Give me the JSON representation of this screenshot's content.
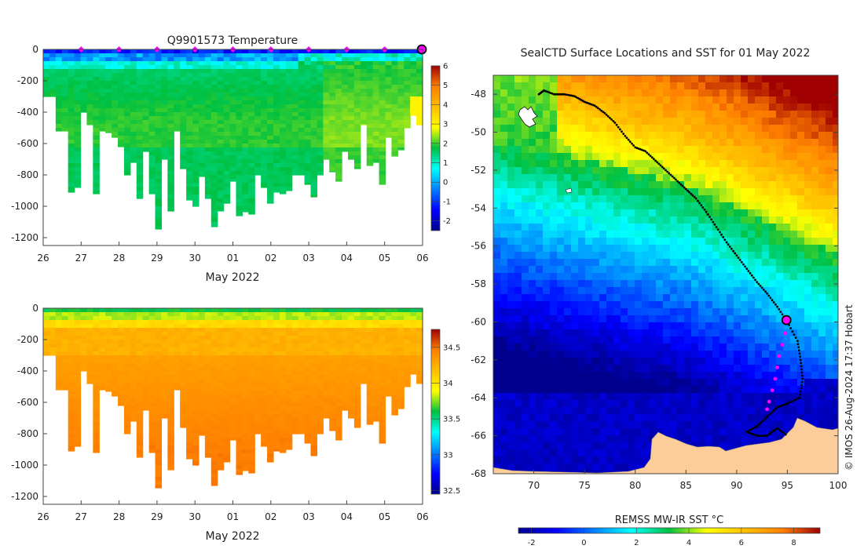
{
  "left_panels": {
    "title": "Q9901573  Temperature",
    "xlabel": "May 2022",
    "xticks": [
      "26",
      "27",
      "28",
      "29",
      "30",
      "01",
      "02",
      "03",
      "04",
      "05",
      "06"
    ],
    "yticks": [
      "0",
      "-200",
      "-400",
      "-600",
      "-800",
      "-1000",
      "-1200"
    ],
    "temp_colorbar": [
      "6",
      "5",
      "4",
      "3",
      "2",
      "1",
      "0",
      "-1",
      "-2"
    ],
    "sal_colorbar": [
      "34.5",
      "34",
      "33.5",
      "33",
      "32.5"
    ]
  },
  "chart_data": [
    {
      "type": "heatmap",
      "title": "Q9901573  Temperature",
      "xlabel": "May 2022",
      "ylabel": "",
      "variable": "temperature",
      "xlim": [
        26,
        36
      ],
      "ylim": [
        -1250,
        0
      ],
      "clim": [
        -2.5,
        6
      ],
      "colorbar_ticks": [
        -2,
        -1,
        0,
        1,
        2,
        3,
        4,
        5,
        6
      ],
      "profile_max_depth": [
        300,
        300,
        520,
        520,
        910,
        880,
        400,
        480,
        920,
        520,
        530,
        560,
        620,
        800,
        720,
        950,
        650,
        920,
        1145,
        700,
        1030,
        520,
        760,
        960,
        1000,
        810,
        950,
        1130,
        1030,
        980,
        840,
        1060,
        1035,
        1050,
        800,
        880,
        980,
        910,
        920,
        900,
        800,
        800,
        860,
        940,
        800,
        700,
        780,
        840,
        650,
        700,
        760,
        480,
        740,
        720,
        860,
        560,
        680,
        640,
        500,
        420,
        480
      ],
      "surface_markers_x": [
        27,
        28,
        29,
        30,
        31,
        32,
        33,
        34,
        35
      ],
      "current_position_x": 36,
      "grid": false
    },
    {
      "type": "heatmap",
      "title": "",
      "xlabel": "May 2022",
      "ylabel": "",
      "variable": "salinity",
      "xlim": [
        26,
        36
      ],
      "ylim": [
        -1250,
        0
      ],
      "clim": [
        32.45,
        34.75
      ],
      "colorbar_ticks": [
        32.5,
        33,
        33.5,
        34,
        34.5
      ],
      "grid": false
    },
    {
      "type": "heatmap",
      "title": "SealCTD Surface Locations and SST for 01 May 2022",
      "xlabel": "",
      "ylabel": "",
      "variable": "sea surface temperature",
      "xlim": [
        66,
        100
      ],
      "ylim": [
        -68,
        -47
      ],
      "xticks": [
        "70",
        "75",
        "80",
        "85",
        "90",
        "95",
        "100"
      ],
      "yticks": [
        "-48",
        "-50",
        "-52",
        "-54",
        "-56",
        "-58",
        "-60",
        "-62",
        "-64",
        "-66",
        "-68"
      ],
      "colorbar_label": "REMSS MW-IR SST °C",
      "colorbar_ticks": [
        "-2",
        "0",
        "2",
        "4",
        "6",
        "8"
      ],
      "clim": [
        -2.5,
        9
      ],
      "track": [
        [
          70.5,
          -48
        ],
        [
          71,
          -47.8
        ],
        [
          72,
          -48
        ],
        [
          73,
          -48
        ],
        [
          74,
          -48.1
        ],
        [
          75,
          -48.4
        ],
        [
          76,
          -48.6
        ],
        [
          77,
          -49
        ],
        [
          78,
          -49.5
        ],
        [
          79,
          -50.2
        ],
        [
          80,
          -50.8
        ],
        [
          81,
          -51
        ],
        [
          82,
          -51.5
        ],
        [
          83,
          -52
        ],
        [
          84,
          -52.5
        ],
        [
          85,
          -53
        ],
        [
          86,
          -53.5
        ],
        [
          87,
          -54.2
        ],
        [
          88,
          -55
        ],
        [
          89,
          -55.8
        ],
        [
          90,
          -56.5
        ],
        [
          91,
          -57.2
        ],
        [
          92,
          -57.9
        ],
        [
          93,
          -58.5
        ],
        [
          94,
          -59.2
        ],
        [
          95,
          -60
        ],
        [
          96,
          -61
        ],
        [
          96.3,
          -62
        ],
        [
          96.5,
          -63
        ],
        [
          96.2,
          -64
        ],
        [
          95,
          -64.3
        ],
        [
          94,
          -64.5
        ],
        [
          93,
          -65
        ],
        [
          92,
          -65.5
        ],
        [
          91,
          -65.8
        ],
        [
          92,
          -66
        ],
        [
          93,
          -66
        ],
        [
          94,
          -65.6
        ],
        [
          95,
          -66
        ]
      ],
      "magenta_points": [
        [
          95,
          -60
        ],
        [
          94.8,
          -60.6
        ],
        [
          94.5,
          -61.2
        ],
        [
          94.2,
          -61.8
        ],
        [
          94,
          -62.4
        ],
        [
          93.8,
          -63
        ],
        [
          93.5,
          -63.6
        ],
        [
          93.2,
          -64.2
        ],
        [
          93,
          -64.6
        ]
      ],
      "current_position": [
        94.9,
        -59.9
      ],
      "land": "Antarctic coastline along southern edge; Kerguelen Islands near 69E,49.5S",
      "grid": false
    }
  ],
  "sst_map": {
    "title": "SealCTD Surface Locations and SST for 01 May 2022",
    "xticks": [
      "70",
      "75",
      "80",
      "85",
      "90",
      "95",
      "100"
    ],
    "yticks": [
      "-48",
      "-50",
      "-52",
      "-54",
      "-56",
      "-58",
      "-60",
      "-62",
      "-64",
      "-66",
      "-68"
    ],
    "colorbar_label": "REMSS MW-IR SST °C",
    "colorbar_ticks": [
      "-2",
      "0",
      "2",
      "4",
      "6",
      "8"
    ],
    "copyright": "© IMOS 26-Aug-2024 17:37 Hobart"
  },
  "colors": {
    "land": "#fccd99",
    "marker": "#ff00ff",
    "track": "#000000"
  }
}
